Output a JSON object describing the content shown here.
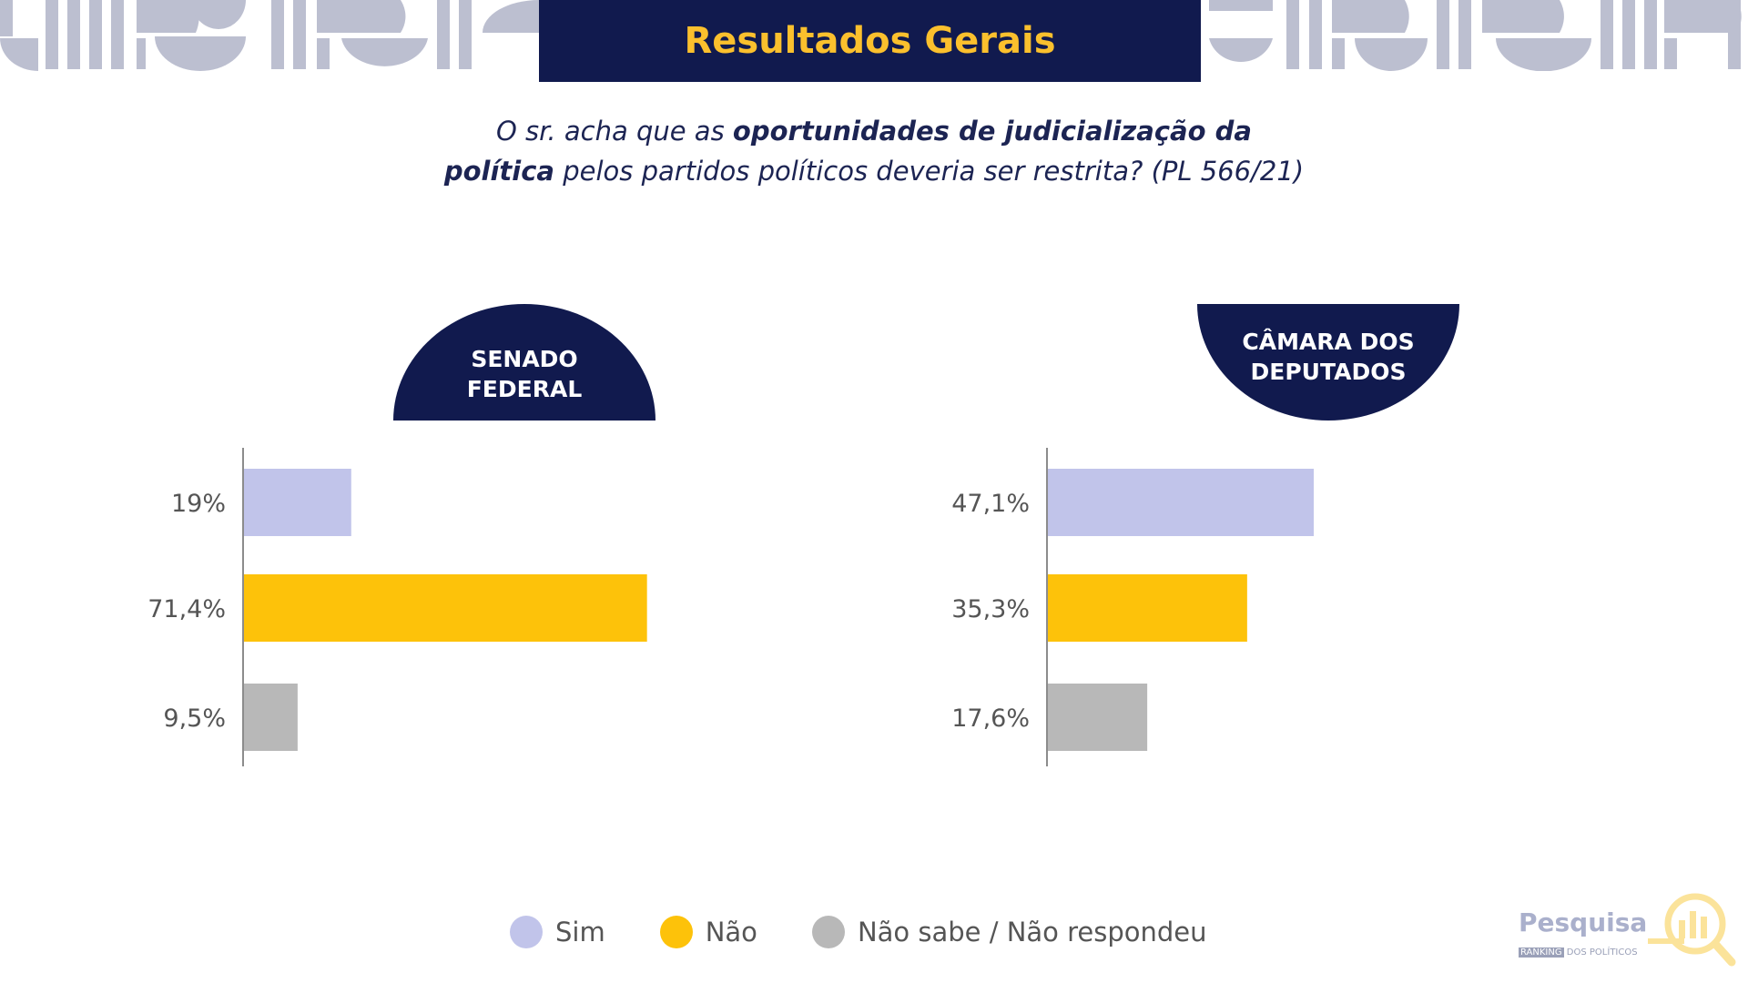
{
  "header": {
    "title": "Resultados Gerais"
  },
  "question": {
    "line1_pre": "O sr. acha que as ",
    "line1_bold": "oportunidades de judicialização da",
    "line2_bold": "política",
    "line2_post": " pelos partidos políticos deveria ser restrita? (PL 566/21)"
  },
  "colors": {
    "sim": "#c1c4ea",
    "nao": "#fdc20a",
    "nao_sabe": "#b8b8b8",
    "navy": "#111a4e",
    "title": "#fbc02d"
  },
  "legend": [
    {
      "label": "Sim",
      "color": "#c1c4ea"
    },
    {
      "label": "Não",
      "color": "#fdc20a"
    },
    {
      "label": "Não sabe / Não respondeu",
      "color": "#b8b8b8"
    }
  ],
  "chart_data": [
    {
      "type": "bar",
      "orientation": "horizontal",
      "title": "SENADO FEDERAL",
      "categories": [
        "Sim",
        "Não",
        "Não sabe / Não respondeu"
      ],
      "values": [
        19,
        71.4,
        9.5
      ],
      "value_labels": [
        "19%",
        "71,4%",
        "9,5%"
      ],
      "colors": [
        "#c1c4ea",
        "#fdc20a",
        "#b8b8b8"
      ],
      "xlim": [
        0,
        100
      ],
      "grid": false
    },
    {
      "type": "bar",
      "orientation": "horizontal",
      "title": "CÂMARA DOS DEPUTADOS",
      "categories": [
        "Sim",
        "Não",
        "Não sabe / Não respondeu"
      ],
      "values": [
        47.1,
        35.3,
        17.6
      ],
      "value_labels": [
        "47,1%",
        "35,3%",
        "17,6%"
      ],
      "colors": [
        "#c1c4ea",
        "#fdc20a",
        "#b8b8b8"
      ],
      "xlim": [
        0,
        100
      ],
      "grid": false
    }
  ],
  "chart_titles": {
    "left_line1": "SENADO",
    "left_line2": "FEDERAL",
    "right_line1": "CÂMARA DOS",
    "right_line2": "DEPUTADOS"
  },
  "logo": {
    "word": "Pesquisa",
    "sub_box": "RANKING",
    "sub_text": "DOS POLÍTICOS"
  }
}
